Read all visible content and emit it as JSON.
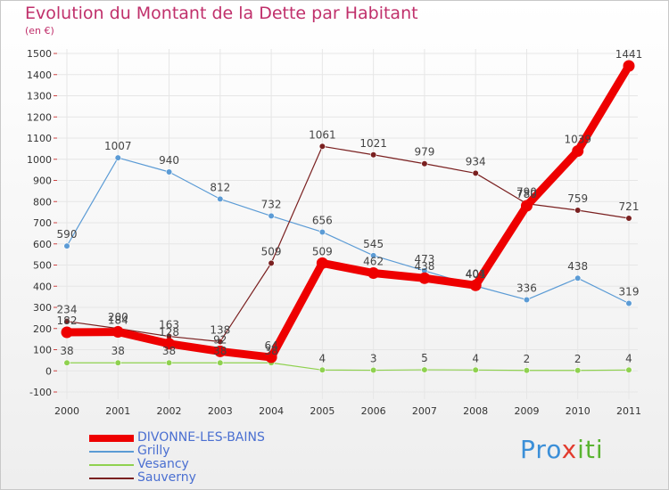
{
  "header": {
    "title": "Evolution du Montant de la Dette par Habitant",
    "subtitle": "(en €)"
  },
  "logo": {
    "text_part1": "Pro",
    "text_part2": "x",
    "text_part3": "iti"
  },
  "colors": {
    "title": "#c0306b",
    "grid": "#e6e6e6",
    "axis_text": "#333333"
  },
  "chart_data": {
    "type": "line",
    "title": "Evolution du Montant de la Dette par Habitant",
    "subtitle": "(en €)",
    "xlabel": "",
    "ylabel": "",
    "x": [
      "2000",
      "2001",
      "2002",
      "2003",
      "2004",
      "2005",
      "2006",
      "2007",
      "2008",
      "2009",
      "2010",
      "2011"
    ],
    "ylim": [
      -100,
      1500
    ],
    "yticks": [
      -100,
      0,
      100,
      200,
      300,
      400,
      500,
      600,
      700,
      800,
      900,
      1000,
      1100,
      1200,
      1300,
      1400,
      1500
    ],
    "grid": true,
    "legend_position": "bottom-left",
    "series": [
      {
        "name": "DIVONNE-LES-BAINS",
        "color": "#ee0000",
        "width": "thick",
        "values": [
          182,
          184,
          128,
          92,
          64,
          509,
          462,
          438,
          404,
          780,
          1039,
          1441
        ],
        "labels": [
          "182",
          "184",
          "128",
          "92",
          "64",
          "509",
          "462",
          "438",
          "404",
          "780",
          "1039",
          "1441"
        ]
      },
      {
        "name": "Grilly",
        "color": "#5b9bd5",
        "width": "thin",
        "values": [
          590,
          1007,
          940,
          812,
          732,
          656,
          545,
          473,
          401,
          336,
          438,
          319
        ],
        "labels": [
          "590",
          "1007",
          "940",
          "812",
          "732",
          "656",
          "545",
          "473",
          "401",
          "336",
          "438",
          "319"
        ]
      },
      {
        "name": "Vesancy",
        "color": "#8fd14f",
        "width": "thin",
        "values": [
          38,
          38,
          38,
          38,
          38,
          4,
          3,
          5,
          4,
          2,
          2,
          4
        ],
        "labels": [
          "38",
          "38",
          "38",
          "38",
          "38",
          "4",
          "3",
          "5",
          "4",
          "2",
          "2",
          "4"
        ]
      },
      {
        "name": "Sauverny",
        "color": "#7a2020",
        "width": "thin",
        "values": [
          234,
          200,
          163,
          138,
          509,
          1061,
          1021,
          979,
          934,
          790,
          759,
          721
        ],
        "labels": [
          "234",
          "200",
          "163",
          "138",
          "509",
          "1061",
          "1021",
          "979",
          "934",
          "790",
          "759",
          "721"
        ]
      }
    ]
  }
}
